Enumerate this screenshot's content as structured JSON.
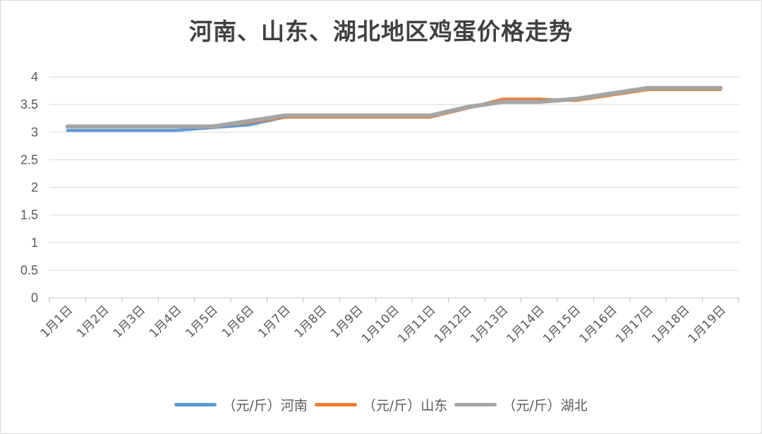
{
  "chart_data": {
    "type": "line",
    "title": "河南、山东、湖北地区鸡蛋价格走势",
    "categories": [
      "1月1日",
      "1月2日",
      "1月3日",
      "1月4日",
      "1月5日",
      "1月6日",
      "1月7日",
      "1月8日",
      "1月9日",
      "1月10日",
      "1月11日",
      "1月12日",
      "1月13日",
      "1月14日",
      "1月15日",
      "1月16日",
      "1月17日",
      "1月18日",
      "1月19日"
    ],
    "series": [
      {
        "name": "（元/斤）河南",
        "color": "#5b9bd5",
        "values": [
          3.03,
          3.03,
          3.03,
          3.03,
          3.08,
          3.13,
          3.27,
          3.27,
          3.27,
          3.27,
          3.27,
          3.43,
          3.57,
          3.57,
          3.6,
          3.7,
          3.8,
          3.8,
          3.8
        ]
      },
      {
        "name": "（元/斤）山东",
        "color": "#ed7d31",
        "values": [
          3.1,
          3.1,
          3.1,
          3.1,
          3.1,
          3.17,
          3.27,
          3.27,
          3.27,
          3.27,
          3.27,
          3.43,
          3.6,
          3.6,
          3.57,
          3.67,
          3.77,
          3.77,
          3.77
        ]
      },
      {
        "name": "（元/斤）湖北",
        "color": "#a5a5a5",
        "values": [
          3.1,
          3.1,
          3.1,
          3.1,
          3.1,
          3.2,
          3.3,
          3.3,
          3.3,
          3.3,
          3.3,
          3.45,
          3.55,
          3.55,
          3.6,
          3.7,
          3.8,
          3.8,
          3.8
        ]
      }
    ],
    "ylim": [
      0,
      4
    ],
    "yticks": [
      "0",
      "0.5",
      "1",
      "1.5",
      "2",
      "2.5",
      "3",
      "3.5",
      "4"
    ],
    "grid": true,
    "legend_position": "bottom"
  }
}
